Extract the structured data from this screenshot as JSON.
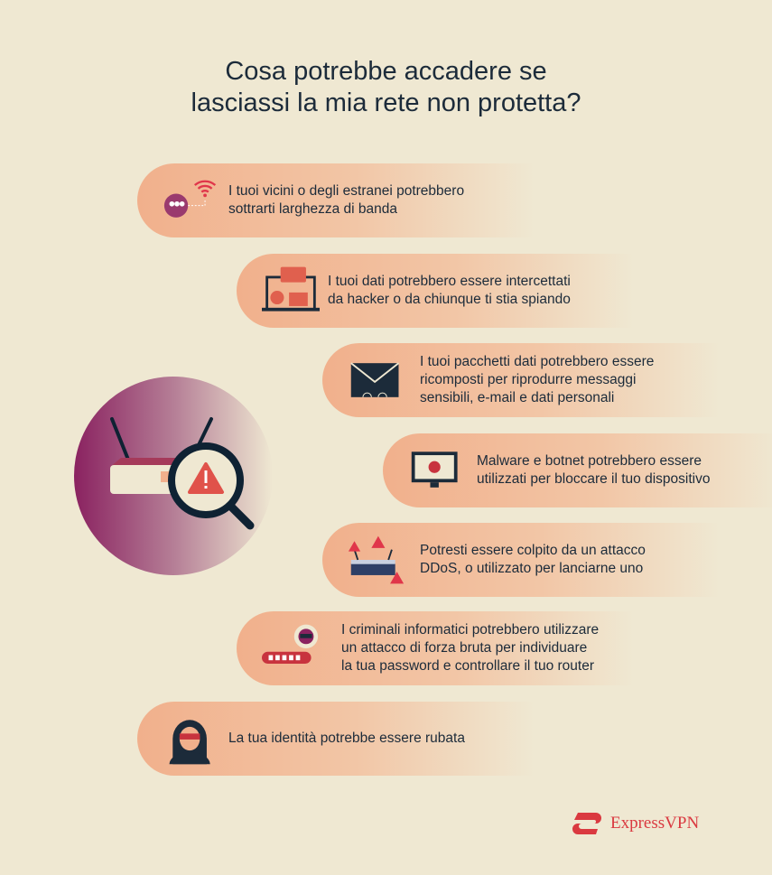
{
  "title_lines": [
    "Cosa potrebbe accadere se",
    "lasciassi la mia rete non protetta?"
  ],
  "items": [
    {
      "icon": "wifi-users-icon",
      "lines": [
        "I tuoi vicini o degli estranei potrebbero",
        "sottrarti larghezza di banda"
      ]
    },
    {
      "icon": "laptop-data-icon",
      "lines": [
        "I tuoi dati potrebbero essere intercettati",
        "da hacker o da chiunque ti stia spiando"
      ]
    },
    {
      "icon": "envelope-packets-icon",
      "lines": [
        "I tuoi pacchetti dati potrebbero essere",
        "ricomposti per riprodurre messaggi",
        "sensibili, e-mail e dati personali"
      ]
    },
    {
      "icon": "monitor-bug-icon",
      "lines": [
        "Malware e botnet potrebbero essere",
        "utilizzati per bloccare il tuo dispositivo"
      ]
    },
    {
      "icon": "router-warning-icon",
      "lines": [
        "Potresti essere colpito da un attacco",
        "DDoS, o utilizzato per lanciarne uno"
      ]
    },
    {
      "icon": "password-hacker-icon",
      "lines": [
        "I criminali informatici potrebbero utilizzare",
        "un attacco di forza bruta per individuare",
        "la tua password e controllare il tuo router"
      ]
    },
    {
      "icon": "masked-identity-icon",
      "lines": [
        "La tua identità potrebbe essere rubata"
      ]
    }
  ],
  "brand": "ExpressVPN",
  "colors": {
    "background": "#efe8d2",
    "accent": "#da3940",
    "pill": "#f1b08c",
    "text": "#1c2b3a",
    "purple": "#8a2260"
  }
}
